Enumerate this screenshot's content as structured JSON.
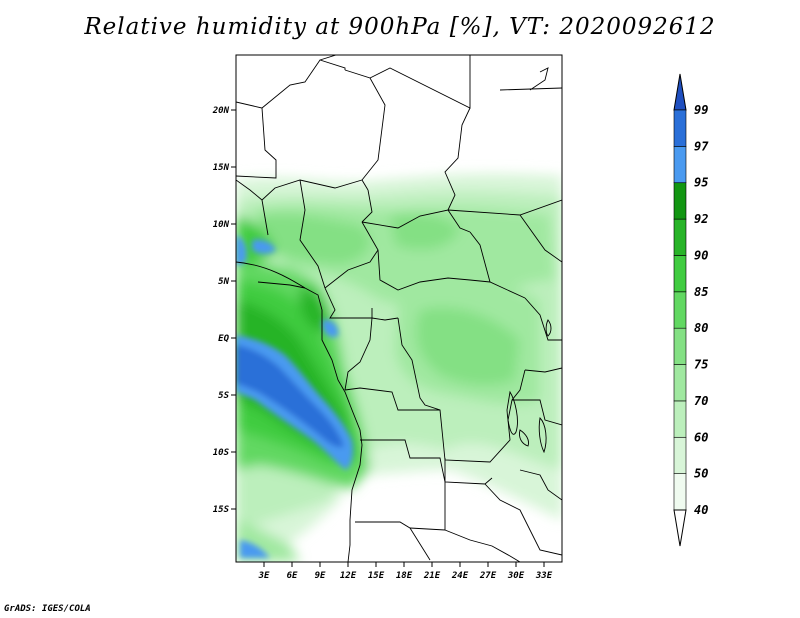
{
  "title": "Relative humidity at 900hPa [%], VT: 2020092612",
  "credit": "GrADS: IGES/COLA",
  "map": {
    "lon_range": [
      0,
      36
    ],
    "lat_range": [
      -20,
      25
    ],
    "lon_ticks": [
      "3E",
      "6E",
      "9E",
      "12E",
      "15E",
      "18E",
      "21E",
      "24E",
      "27E",
      "30E",
      "33E"
    ],
    "lat_ticks": [
      "20N",
      "15N",
      "10N",
      "5N",
      "EQ",
      "5S",
      "10S",
      "15S"
    ]
  },
  "colorbar": {
    "levels": [
      "40",
      "50",
      "60",
      "70",
      "75",
      "80",
      "85",
      "90",
      "92",
      "95",
      "97",
      "99"
    ],
    "colors": [
      "#f0fbf0",
      "#d8f5d8",
      "#bcefbc",
      "#a0e8a0",
      "#84e084",
      "#62d862",
      "#40cc40",
      "#28b428",
      "#129612",
      "#4a9af0",
      "#2a6fd8",
      "#1f4fc0"
    ],
    "below_color": "#ffffff"
  }
}
